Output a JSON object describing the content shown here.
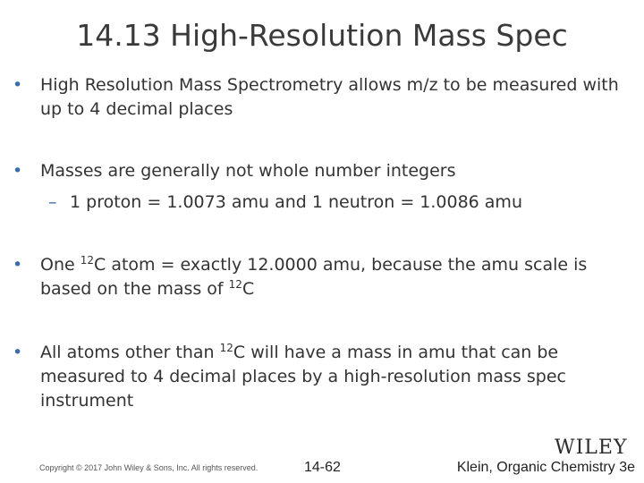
{
  "slide": {
    "title": "14.13 High-Resolution Mass Spec",
    "bullets": [
      {
        "text": "High Resolution Mass Spectrometry allows m/z to be measured with up to 4 decimal places"
      },
      {
        "text": "Masses are generally not whole number integers",
        "sub": "1 proton = 1.0073 amu and 1 neutron = 1.0086 amu"
      },
      {
        "part1": "One ",
        "sup1": "12",
        "part2": "C atom = exactly 12.0000 amu, because the amu scale is based on the mass of ",
        "sup2": "12",
        "part3": "C"
      },
      {
        "part1": "All atoms other than ",
        "sup1": "12",
        "part2": "C will have a mass in amu that can be measured to 4 decimal places by a high-resolution mass spec instrument"
      }
    ],
    "bullet_glyph": "•",
    "dash_glyph": "–"
  },
  "footer": {
    "copyright": "Copyright © 2017 John Wiley & Sons, Inc. All rights reserved.",
    "page": "14-62",
    "book": "Klein, Organic Chemistry 3e",
    "logo": "WILEY"
  }
}
